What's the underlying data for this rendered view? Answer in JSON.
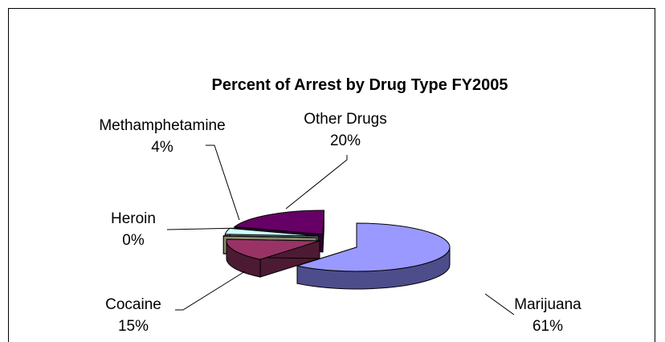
{
  "chart_data": {
    "type": "pie",
    "title": "Percent of Arrest by Drug Type FY2005",
    "slices": [
      {
        "name": "Marijuana",
        "label": "61%",
        "value": 61,
        "color": "#9999ff",
        "side": "#4d4d8c"
      },
      {
        "name": "Cocaine",
        "label": "15%",
        "value": 15,
        "color": "#993366",
        "side": "#4d1a33"
      },
      {
        "name": "Heroin",
        "label": "0%",
        "value": 0,
        "color": "#ffffcc",
        "side": "#8c8c70"
      },
      {
        "name": "Methamphetamine",
        "label": "4%",
        "value": 4,
        "color": "#ccffff",
        "side": "#6b8c8c"
      },
      {
        "name": "Other Drugs",
        "label": "20%",
        "value": 20,
        "color": "#660066",
        "side": "#330033"
      }
    ]
  }
}
